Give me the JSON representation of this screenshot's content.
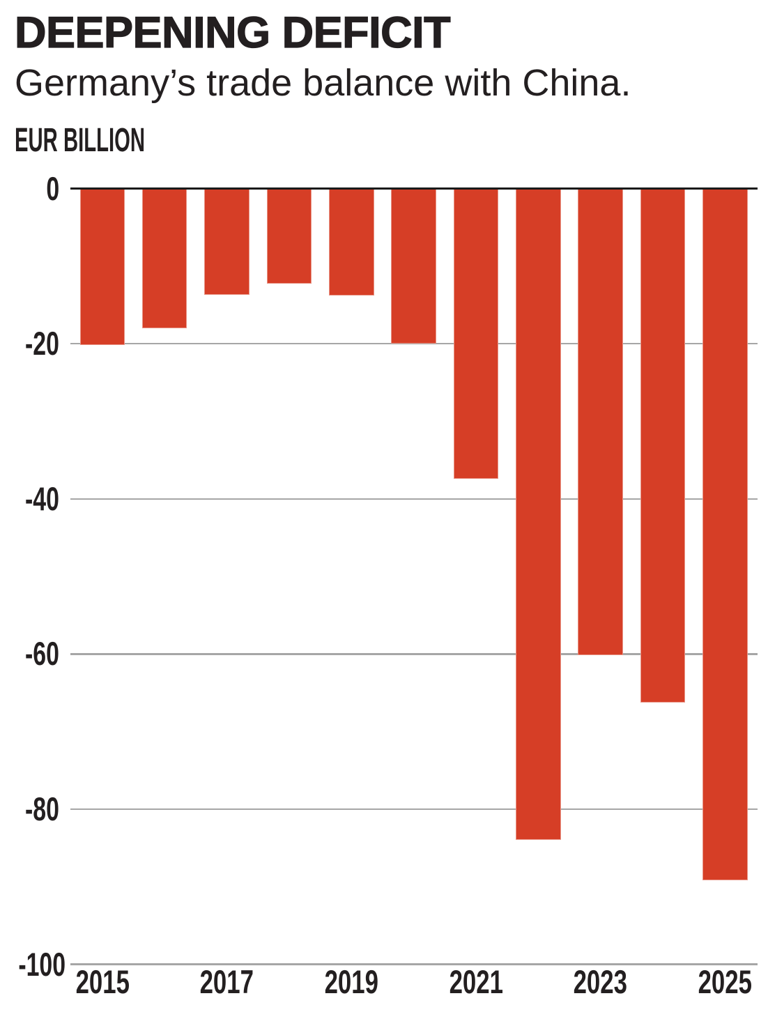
{
  "header": {
    "title": "DEEPENING DEFICIT",
    "subtitle": "Germany’s trade balance with China.",
    "unit_label": "EUR BILLION"
  },
  "colors": {
    "bar": "#d63e26",
    "text": "#231f20",
    "gridline": "#a6a6a6",
    "zero_line": "#1a1a1a",
    "background": "#ffffff"
  },
  "chart_data": {
    "type": "bar",
    "title": "DEEPENING DEFICIT",
    "subtitle": "Germany’s trade balance with China.",
    "ylabel": "EUR BILLION",
    "xlabel": "",
    "categories": [
      2015,
      2016,
      2017,
      2018,
      2019,
      2020,
      2021,
      2022,
      2023,
      2024,
      2025
    ],
    "values": [
      -20.2,
      -18.1,
      -13.7,
      -12.3,
      -13.8,
      -20.0,
      -37.5,
      -84.0,
      -60.2,
      -66.3,
      -89.2
    ],
    "series_name": "Trade balance (EUR billion)",
    "ylim": [
      -100,
      0
    ],
    "yticks": [
      0,
      -20,
      -40,
      -60,
      -80,
      -100
    ],
    "xtick_labels": [
      "2015",
      "2017",
      "2019",
      "2021",
      "2023",
      "2025"
    ],
    "grid": true,
    "legend": false
  }
}
